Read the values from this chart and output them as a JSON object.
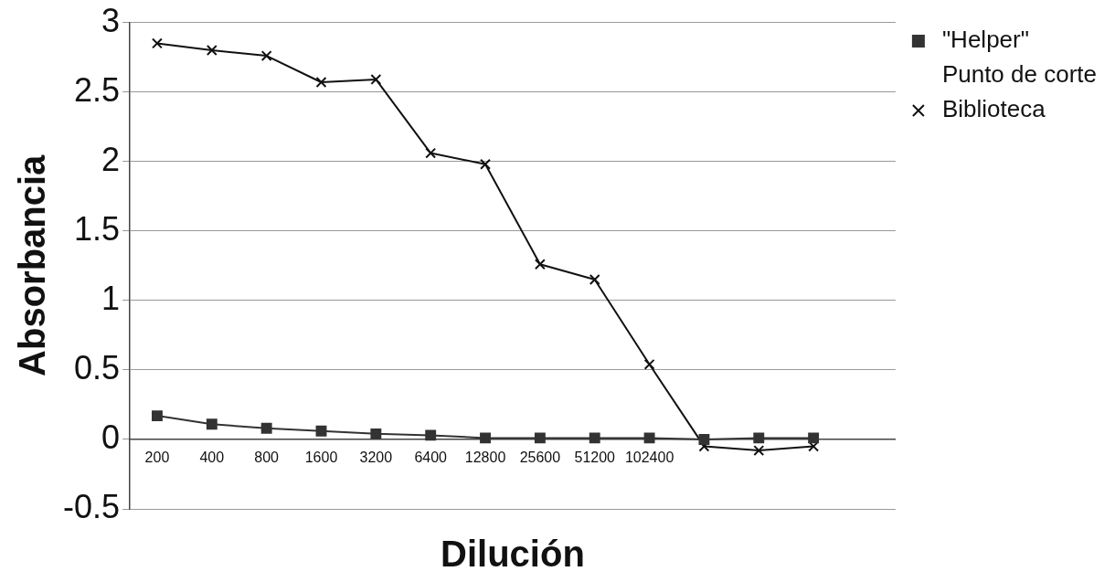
{
  "chart_data": {
    "type": "line",
    "xlabel": "Dilución",
    "ylabel": "Absorbancia",
    "categories": [
      "200",
      "400",
      "800",
      "1600",
      "3200",
      "6400",
      "12800",
      "25600",
      "51200",
      "102400",
      null,
      null,
      null,
      null
    ],
    "series": [
      {
        "name": "\"Helper\"",
        "color": "#333333",
        "marker": "square",
        "values": [
          0.17,
          0.11,
          0.08,
          0.06,
          0.04,
          0.03,
          0.01,
          0.01,
          0.01,
          0.01,
          0.0,
          0.01,
          0.01,
          null
        ]
      },
      {
        "name": "Punto de corte",
        "marker": "none",
        "values": [
          null,
          null,
          null,
          null,
          null,
          null,
          null,
          null,
          null,
          null,
          null,
          null,
          null,
          null
        ]
      },
      {
        "name": "Biblioteca",
        "color": "#111111",
        "marker": "cross",
        "values": [
          2.85,
          2.8,
          2.76,
          2.57,
          2.59,
          2.06,
          1.98,
          1.26,
          1.15,
          0.54,
          -0.05,
          -0.08,
          -0.05,
          null
        ]
      }
    ],
    "ylim": [
      -0.5,
      3
    ],
    "yticks": [
      -0.5,
      0,
      0.5,
      1,
      1.5,
      2,
      2.5,
      3
    ],
    "grid": "y",
    "legend": "right",
    "line_style": "solid"
  }
}
